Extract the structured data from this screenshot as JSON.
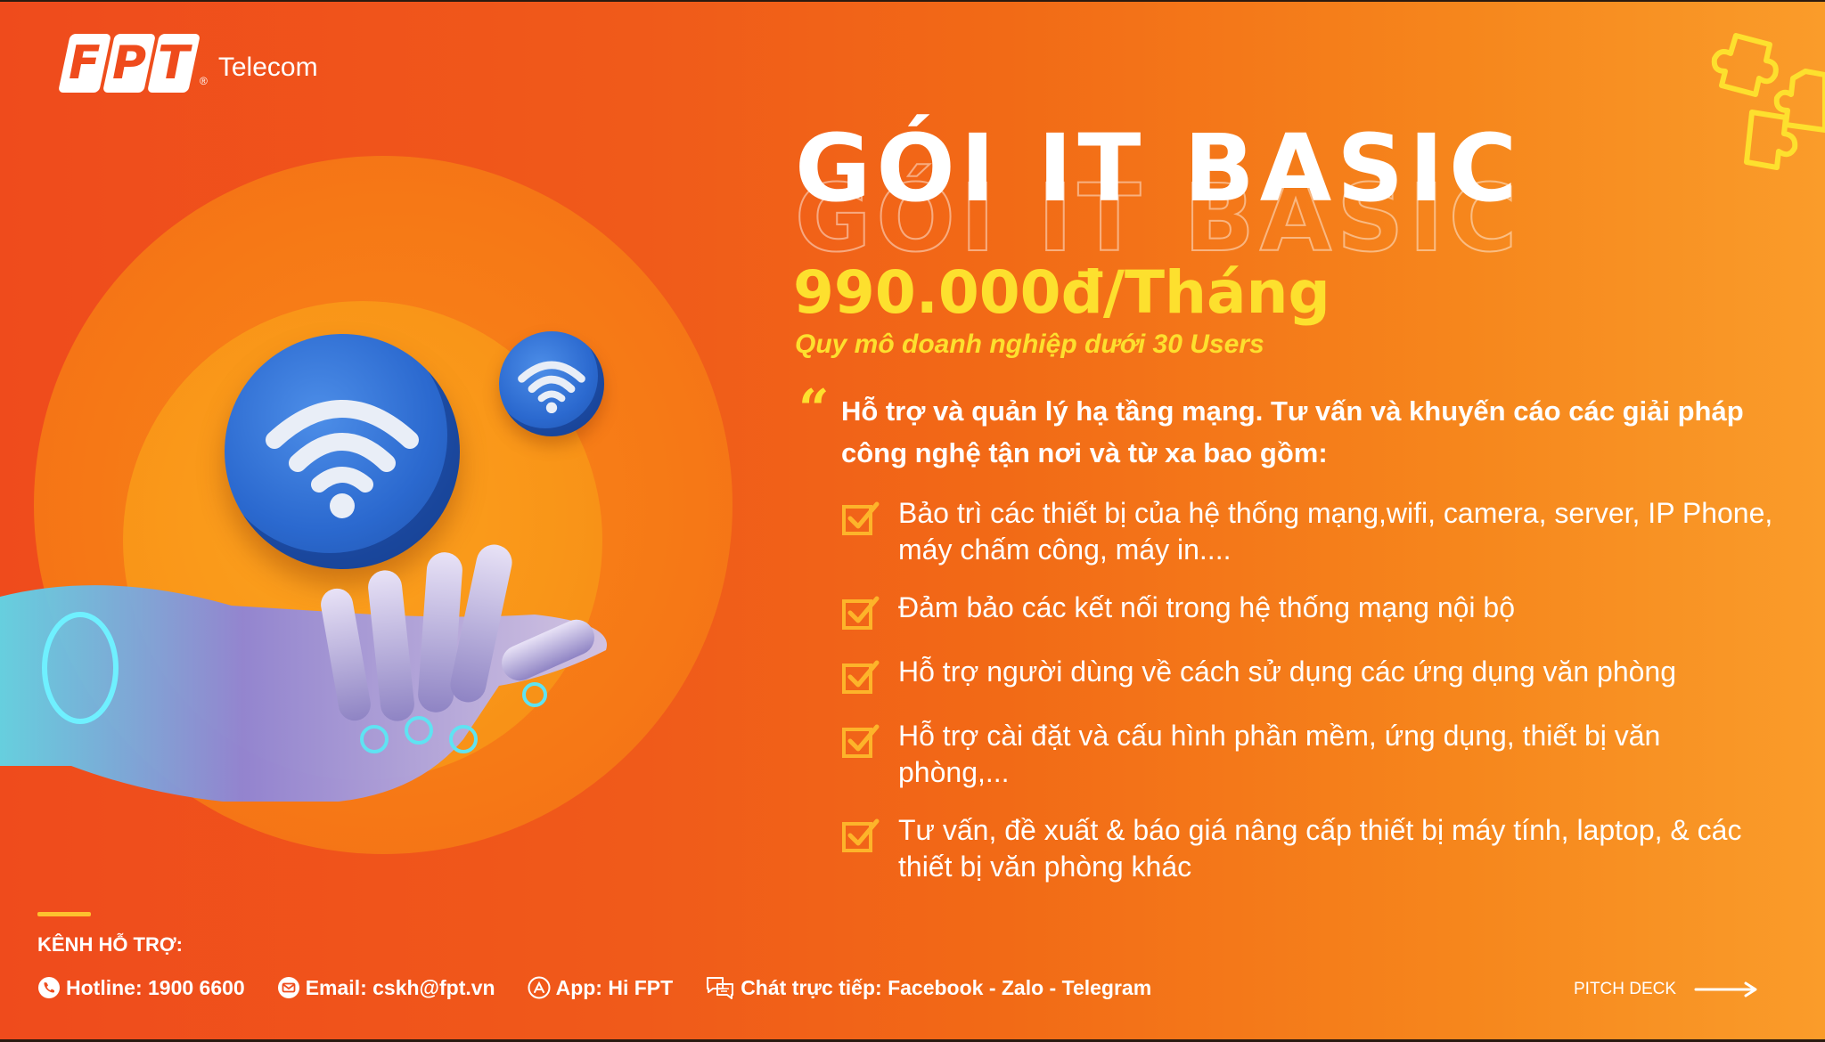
{
  "brand": {
    "logo_letters": [
      "F",
      "P",
      "T"
    ],
    "registered_mark": "®",
    "logo_suffix": "Telecom",
    "colors": {
      "background": "#ef4b1c",
      "accent_yellow": "#fde02e",
      "wifi_blue": "#2b69cf"
    }
  },
  "hero": {
    "title": "GÓI IT BASIC",
    "price": "990.000đ/Tháng",
    "scale_note": "Quy mô doanh nghiệp dưới 30 Users",
    "quote_mark": "“",
    "intro": "Hỗ trợ và quản lý hạ tầng mạng. Tư vấn và khuyến cáo các giải pháp công nghệ tận nơi và từ xa bao gồm:"
  },
  "services": [
    {
      "text": "Bảo trì các thiết bị của hệ thống mạng,wifi, camera, server, IP Phone, máy chấm công, máy in....",
      "icon": "checkbox-icon"
    },
    {
      "text": "Đảm bảo các kết nối trong hệ thống mạng nội bộ",
      "icon": "checkbox-icon"
    },
    {
      "text": "Hỗ trợ người dùng về cách sử dụng các ứng dụng văn phòng",
      "icon": "checkbox-icon"
    },
    {
      "text": "Hỗ trợ cài đặt và cấu hình phần mềm, ứng dụng, thiết bị văn phòng,...",
      "icon": "checkbox-icon"
    },
    {
      "text": "Tư vấn, đề xuất & báo giá nâng cấp thiết bị máy tính, laptop, & các thiết bị văn phòng khác",
      "icon": "checkbox-icon"
    }
  ],
  "footer": {
    "support_label": "KÊNH HỖ TRỢ:",
    "hotline": "Hotline: 1900 6600",
    "email": "Email: cskh@fpt.vn",
    "app": "App: Hi FPT",
    "chat": "Chát trực tiếp: Facebook - Zalo - Telegram",
    "pitch_deck": "PITCH DECK"
  }
}
